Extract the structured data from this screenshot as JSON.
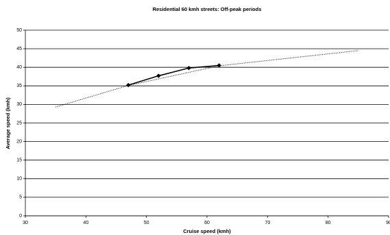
{
  "chart_data": {
    "type": "line",
    "title": "Residential 60 kmh streets: Off-peak periods",
    "x_label": "Cruise speed (kmh)",
    "y_label": "Average speed (kmh)",
    "series": [
      {
        "color": "#000000",
        "style": "solid",
        "marker": "diamond",
        "x": [
          47,
          52,
          57,
          62
        ],
        "values": [
          35.2,
          37.7,
          39.8,
          40.5
        ]
      },
      {
        "color": "#000000",
        "style": "dotted",
        "x": [
          35,
          47,
          62,
          85
        ],
        "values": [
          29.3,
          35.1,
          40.4,
          44.5
        ]
      }
    ],
    "xlim": [
      30,
      90
    ],
    "xticks": [
      30,
      40,
      50,
      60,
      70,
      80,
      90
    ],
    "ylim": [
      0,
      50
    ],
    "yticks": [
      0,
      5,
      10,
      15,
      20,
      25,
      30,
      35,
      40,
      45,
      50
    ],
    "grid": true
  }
}
